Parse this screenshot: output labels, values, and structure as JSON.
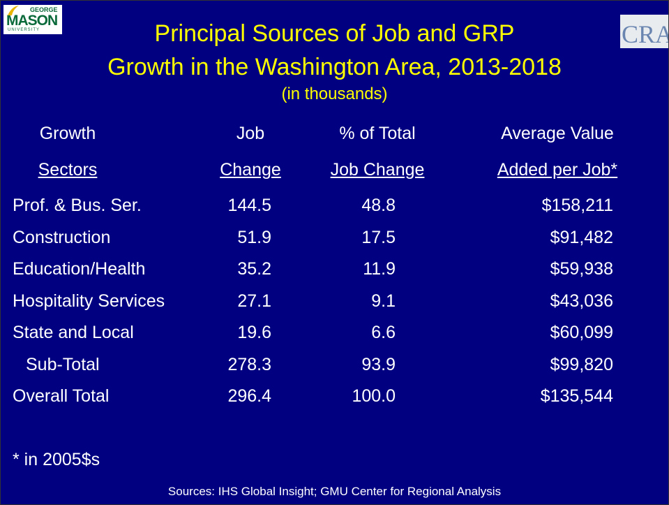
{
  "header": {
    "logo_left": [
      "GEORGE",
      "MASON",
      "UNIVERSITY"
    ],
    "logo_right": "CRA",
    "title": [
      "Principal Sources of Job and GRP",
      "Growth in the Washington Area, 2013-2018"
    ],
    "subtitle": "(in thousands)"
  },
  "table": {
    "header": [
      [
        "Growth",
        "Job",
        "% of Total",
        "Average Value"
      ],
      [
        "Sectors",
        "Change",
        "Job Change",
        "Added per Job*"
      ]
    ],
    "rows": [
      [
        "Prof. & Bus. Ser.",
        "144.5",
        "48.8",
        "$158,211"
      ],
      [
        "Construction",
        "51.9",
        "17.5",
        "$91,482"
      ],
      [
        "Education/Health",
        "35.2",
        "11.9",
        "$59,938"
      ],
      [
        "Hospitality Services",
        "27.1",
        "9.1",
        "$43,036"
      ],
      [
        "State and Local",
        "19.6",
        "6.6",
        "$60,099"
      ],
      [
        "Sub-Total",
        "278.3",
        "93.9",
        "$99,820"
      ],
      [
        "Overall Total",
        "296.4",
        "100.0",
        "$135,544"
      ]
    ]
  },
  "footnote": "* in 2005$s",
  "sources": "Sources: IHS Global Insight; GMU Center for Regional Analysis"
}
